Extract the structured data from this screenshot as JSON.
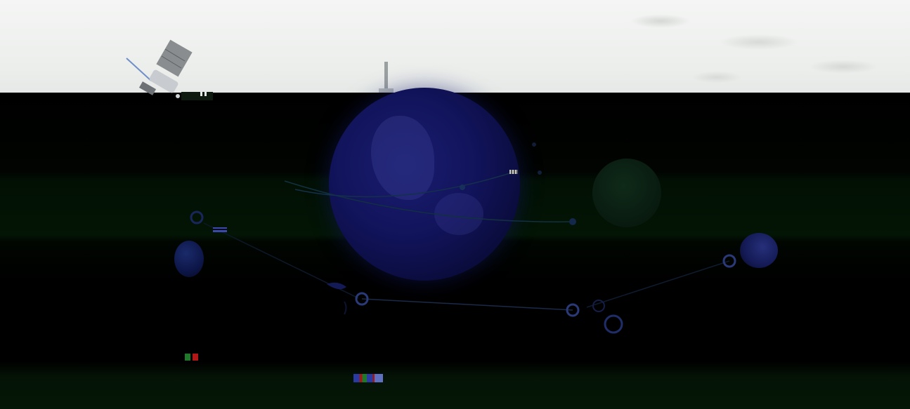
{
  "scene": {
    "accent_colors": {
      "globe": "#11135a",
      "link_line": "#1c2f4a",
      "node_ring": "#2a3a78",
      "dark_green": "#031505"
    },
    "nodes": [
      {
        "label": ""
      },
      {
        "label": ""
      },
      {
        "label": ""
      },
      {
        "label": ""
      }
    ]
  }
}
